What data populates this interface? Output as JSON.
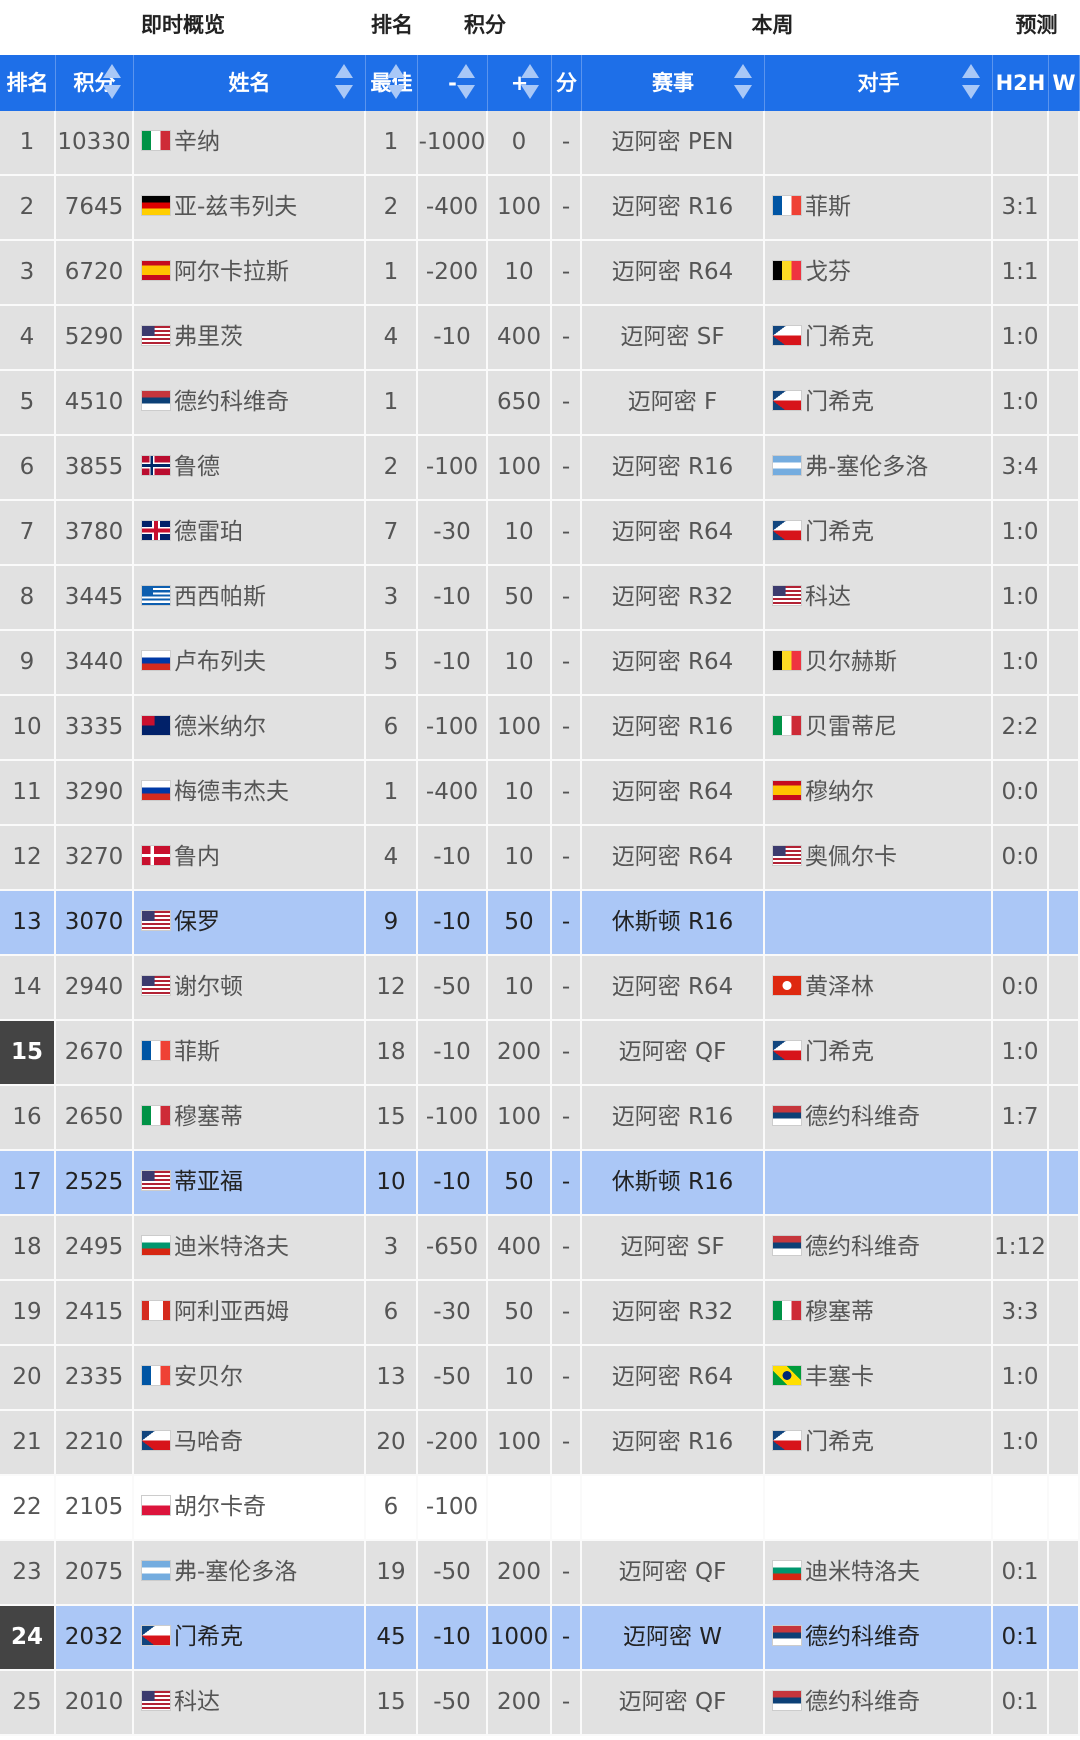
{
  "header_groups": [
    "即时概览",
    "排名",
    "积分",
    "本周",
    "预测"
  ],
  "columns": [
    "排名",
    "积分",
    "姓名",
    "最佳",
    "-",
    "+",
    "分",
    "赛事",
    "对手",
    "H2H",
    "W"
  ],
  "rows": [
    [
      1,
      10330,
      "辛纳",
      1,
      -1000,
      0,
      "-",
      "迈阿密 PEN",
      null,
      null
    ],
    [
      2,
      7645,
      "亚-兹韦列夫",
      2,
      -400,
      100,
      "-",
      "迈阿密 R16",
      "菲斯",
      "3:1"
    ],
    [
      3,
      6720,
      "阿尔卡拉斯",
      1,
      -200,
      10,
      "-",
      "迈阿密 R64",
      "戈芬",
      "1:1"
    ],
    [
      4,
      5290,
      "弗里茨",
      4,
      -10,
      400,
      "-",
      "迈阿密 SF",
      "门希克",
      "1:0"
    ],
    [
      5,
      4510,
      "德约科维奇",
      1,
      null,
      650,
      "-",
      "迈阿密 F",
      "门希克",
      "1:0"
    ],
    [
      6,
      3855,
      "鲁德",
      2,
      -100,
      100,
      "-",
      "迈阿密 R16",
      "弗-塞伦多洛",
      "3:4"
    ],
    [
      7,
      3780,
      "德雷珀",
      7,
      -30,
      10,
      "-",
      "迈阿密 R64",
      "门希克",
      "1:0"
    ],
    [
      8,
      3445,
      "西西帕斯",
      3,
      -10,
      50,
      "-",
      "迈阿密 R32",
      "科达",
      "1:0"
    ],
    [
      9,
      3440,
      "卢布列夫",
      5,
      -10,
      10,
      "-",
      "迈阿密 R64",
      "贝尔赫斯",
      "1:0"
    ],
    [
      10,
      3335,
      "德米纳尔",
      6,
      -100,
      100,
      "-",
      "迈阿密 R16",
      "贝雷蒂尼",
      "2:2"
    ],
    [
      11,
      3290,
      "梅德韦杰夫",
      1,
      -400,
      10,
      "-",
      "迈阿密 R64",
      "穆纳尔",
      "0:0"
    ],
    [
      12,
      3270,
      "鲁内",
      4,
      -10,
      10,
      "-",
      "迈阿密 R64",
      "奥佩尔卡",
      "0:0"
    ],
    [
      13,
      3070,
      "保罗",
      9,
      -10,
      50,
      "-",
      "休斯顿 R16",
      null,
      null
    ],
    [
      14,
      2940,
      "谢尔顿",
      12,
      -50,
      10,
      "-",
      "迈阿密 R64",
      "黄泽林",
      "0:0"
    ],
    [
      15,
      2670,
      "菲斯",
      18,
      -10,
      200,
      "-",
      "迈阿密 QF",
      "门希克",
      "1:0"
    ],
    [
      16,
      2650,
      "穆塞蒂",
      15,
      -100,
      100,
      "-",
      "迈阿密 R16",
      "德约科维奇",
      "1:7"
    ],
    [
      17,
      2525,
      "蒂亚福",
      10,
      -10,
      50,
      "-",
      "休斯顿 R16",
      null,
      null
    ],
    [
      18,
      2495,
      "迪米特洛夫",
      3,
      -650,
      400,
      "-",
      "迈阿密 SF",
      "德约科维奇",
      "1:12"
    ],
    [
      19,
      2415,
      "阿利亚西姆",
      6,
      -30,
      50,
      "-",
      "迈阿密 R32",
      "穆塞蒂",
      "3:3"
    ],
    [
      20,
      2335,
      "安贝尔",
      13,
      -50,
      10,
      "-",
      "迈阿密 R64",
      "丰塞卡",
      "1:0"
    ],
    [
      21,
      2210,
      "马哈奇",
      20,
      -200,
      100,
      "-",
      "迈阿密 R16",
      "门希克",
      "1:0"
    ],
    [
      22,
      2105,
      "胡尔卡奇",
      6,
      -100,
      null,
      null,
      null,
      null,
      null
    ],
    [
      23,
      2075,
      "弗-塞伦多洛",
      19,
      -50,
      200,
      "-",
      "迈阿密 QF",
      "迪米特洛夫",
      "0:1"
    ],
    [
      24,
      2032,
      "门希克",
      45,
      -10,
      1000,
      "-",
      "迈阿密 W",
      "德约科维奇",
      "0:1"
    ],
    [
      25,
      2010,
      "科达",
      15,
      -50,
      200,
      "-",
      "迈阿密 QF",
      "德约科维奇",
      "0:1"
    ]
  ]
}
